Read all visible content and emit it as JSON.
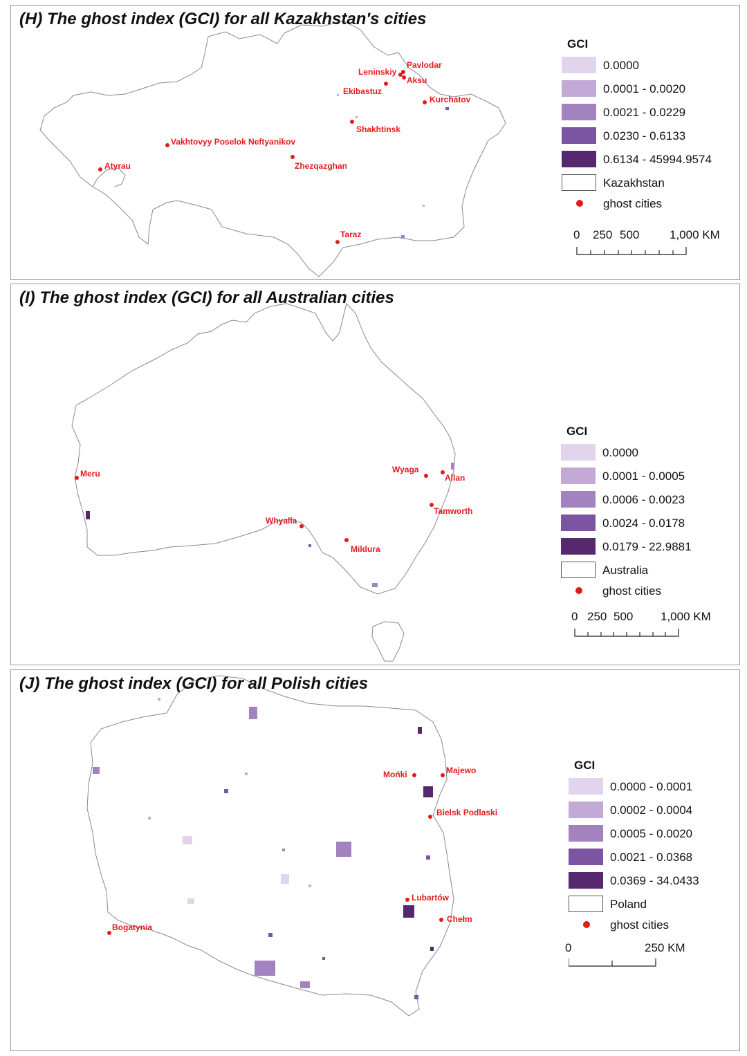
{
  "colors": {
    "ghost_city": "#e31a1c",
    "ramp": [
      "#e2d4ec",
      "#c3aad6",
      "#a383bf",
      "#7b55a1",
      "#55286f"
    ],
    "outline": "#888888"
  },
  "panels": [
    {
      "title": "(H)  The ghost index (GCI) for all Kazakhstan's cities",
      "legend": {
        "title": "GCI",
        "classes": [
          "0.0000",
          "0.0001 - 0.0020",
          "0.0021 - 0.0229",
          "0.0230 - 0.6133",
          "0.6134 - 45994.9574"
        ],
        "boundary_label": "Kazakhstan",
        "ghost_label": "ghost cities",
        "scale_ticks": [
          "0",
          "250",
          "500",
          "1,000 KM"
        ]
      },
      "cities": [
        "Pavlodar",
        "Leninskiy",
        "Aksu",
        "Ekibastuz",
        "Kurchatov",
        "Shakhtinsk",
        "Vakhtovyy Poselok Neftyanikov",
        "Atyrau",
        "Zhezqazghan",
        "Taraz"
      ]
    },
    {
      "title": "(I)  The ghost index (GCI) for all Australian cities",
      "legend": {
        "title": "GCI",
        "classes": [
          "0.0000",
          "0.0001 - 0.0005",
          "0.0006 - 0.0023",
          "0.0024 - 0.0178",
          "0.0179 - 22.9881"
        ],
        "boundary_label": "Australia",
        "ghost_label": "ghost cities",
        "scale_ticks": [
          "0",
          "250",
          "500",
          "1,000 KM"
        ]
      },
      "cities": [
        "Meru",
        "Wyaga",
        "Allan",
        "Tamworth",
        "Whyalla",
        "Mildura"
      ]
    },
    {
      "title": "(J)  The ghost index (GCI) for all Polish cities",
      "legend": {
        "title": "GCI",
        "classes": [
          "0.0000 - 0.0001",
          "0.0002 - 0.0004",
          "0.0005 - 0.0020",
          "0.0021 - 0.0368",
          "0.0369 - 34.0433"
        ],
        "boundary_label": "Poland",
        "ghost_label": "ghost cities",
        "scale_ticks": [
          "0",
          "250 KM"
        ]
      },
      "cities": [
        "Mońki",
        "Majewo",
        "Bielsk Podlaski",
        "Lubartów",
        "Chełm",
        "Bogatynia"
      ]
    }
  ]
}
